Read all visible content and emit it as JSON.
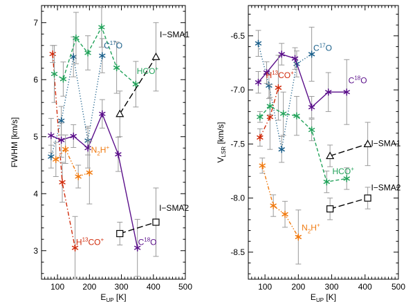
{
  "chart_data": [
    {
      "type": "line",
      "ylabel": "FWHM [km/s]",
      "xlabel": "E",
      "xlabel_sub": "UP",
      "xlabel_unit": " [K]",
      "xlim": [
        50,
        500
      ],
      "ylim": [
        2.5,
        7.3
      ],
      "xticks": [
        100,
        200,
        300,
        400,
        500
      ],
      "xtick_labels": [
        "100",
        "200",
        "300",
        "400",
        "500"
      ],
      "yticks": [
        3,
        4,
        5,
        6,
        7
      ],
      "ytick_labels": [
        "3",
        "4",
        "5",
        "6",
        "7"
      ],
      "series": [
        {
          "id": "h13co",
          "name": "H13CO+",
          "color": "#d02a0a",
          "dash": "dashdot",
          "marker": "star",
          "x": [
            85,
            115,
            155
          ],
          "y": [
            6.45,
            4.2,
            3.05
          ],
          "err": [
            0.15,
            0.35,
            0.55
          ]
        },
        {
          "id": "c17o",
          "name": "C17O",
          "color": "#1a5f8a",
          "dash": "dotted",
          "marker": "star",
          "x": [
            80,
            112,
            150,
            195,
            240
          ],
          "y": [
            4.65,
            5.28,
            6.4,
            4.93,
            6.42
          ],
          "err": [
            0.2,
            0.25,
            0.35,
            0.25,
            0.3
          ]
        },
        {
          "id": "hco",
          "name": "HCO+",
          "color": "#22a25a",
          "dash": "dashed",
          "marker": "star",
          "x": [
            90,
            118,
            158,
            195,
            238,
            285,
            345
          ],
          "y": [
            6.1,
            6.01,
            6.73,
            6.47,
            6.92,
            6.21,
            5.92
          ],
          "err": [
            0.5,
            0.3,
            0.45,
            0.3,
            0.35,
            0.45,
            0.4
          ]
        },
        {
          "id": "c18o",
          "name": "C18O",
          "color": "#5a0f8a",
          "dash": "solid",
          "marker": "star",
          "x": [
            80,
            112,
            150,
            195,
            240,
            290,
            350
          ],
          "y": [
            5.02,
            4.94,
            5.01,
            4.8,
            5.4,
            4.69,
            3.05
          ],
          "err": [
            0.3,
            0.3,
            0.2,
            0.35,
            0.25,
            0.3,
            0.5
          ]
        },
        {
          "id": "n2h",
          "name": "N2H+",
          "color": "#f07a10",
          "dash": "dashdotdot",
          "marker": "star",
          "x": [
            95,
            125,
            165,
            200
          ],
          "y": [
            4.6,
            4.78,
            4.3,
            4.37
          ],
          "err": [
            0.3,
            0.25,
            0.2,
            0.55
          ]
        },
        {
          "id": "isma1",
          "name": "I-SMA1",
          "color": "#000000",
          "dash": "longdash",
          "marker": "triangle",
          "x": [
            295,
            408
          ],
          "y": [
            5.4,
            6.4
          ],
          "err": [
            0.4,
            0.6
          ]
        },
        {
          "id": "isma2",
          "name": "I-SMA2",
          "color": "#000000",
          "dash": "longdash",
          "marker": "square",
          "x": [
            295,
            408
          ],
          "y": [
            3.3,
            3.5
          ],
          "err": [
            0.2,
            0.6
          ]
        }
      ],
      "annotations": [
        {
          "series": "isma1",
          "text": "I−SMA1",
          "x": 420,
          "y": 6.74
        },
        {
          "series": "hco",
          "main": "HCO",
          "sup": "+",
          "x": 348,
          "y": 6.1
        },
        {
          "series": "c17o",
          "main": "C",
          "presup": "17",
          "tail": "O",
          "x": 245,
          "y": 6.55
        },
        {
          "series": "n2h",
          "main": "N",
          "sub": "2",
          "tail": "H",
          "sup": "+",
          "x": 205,
          "y": 4.72
        },
        {
          "series": "isma2",
          "text": "I−SMA2",
          "x": 418,
          "y": 3.7
        },
        {
          "series": "h13co",
          "main": "H",
          "presup": "13",
          "tail": "CO",
          "sup": "+",
          "x": 158,
          "y": 3.1
        },
        {
          "series": "c18o",
          "main": "C",
          "presup": "18",
          "tail": "O",
          "x": 352,
          "y": 3.1
        }
      ]
    },
    {
      "type": "line",
      "ylabel": "V",
      "ylabel_sub": "LSR",
      "ylabel_unit": " [km/s]",
      "xlabel": "E",
      "xlabel_sub": "UP",
      "xlabel_unit": " [K]",
      "xlim": [
        50,
        500
      ],
      "ylim": [
        -8.75,
        -6.22
      ],
      "xticks": [
        100,
        200,
        300,
        400,
        500
      ],
      "xtick_labels": [
        "100",
        "200",
        "300",
        "400",
        "500"
      ],
      "yticks": [
        -6.5,
        -7.0,
        -7.5,
        -8.0,
        -8.5
      ],
      "ytick_labels": [
        "-6.5",
        "-7.0",
        "-7.5",
        "-8.0",
        "-8.5"
      ],
      "series": [
        {
          "id": "c17o",
          "name": "C17O",
          "color": "#1a5f8a",
          "dash": "dotted",
          "marker": "star",
          "x": [
            80,
            112,
            150,
            195,
            240
          ],
          "y": [
            -6.57,
            -6.96,
            -7.55,
            -6.76,
            -6.67
          ],
          "err": [
            0.12,
            0.12,
            0.12,
            0.12,
            0.25
          ]
        },
        {
          "id": "c18o",
          "name": "C18O",
          "color": "#5a0f8a",
          "dash": "solid",
          "marker": "star",
          "x": [
            80,
            105,
            150,
            190,
            240,
            290,
            345
          ],
          "y": [
            -6.93,
            -6.84,
            -6.67,
            -6.71,
            -7.16,
            -7.02,
            -7.02
          ],
          "err": [
            0.1,
            0.1,
            0.1,
            0.1,
            0.1,
            0.18,
            0.3
          ]
        },
        {
          "id": "h13co",
          "name": "H13CO+",
          "color": "#d02a0a",
          "dash": "dashdot",
          "marker": "star",
          "x": [
            85,
            115,
            140
          ],
          "y": [
            -7.44,
            -7.25,
            -6.98
          ],
          "err": [
            0.08,
            0.3,
            0.3
          ]
        },
        {
          "id": "hco",
          "name": "HCO+",
          "color": "#22a25a",
          "dash": "dashed",
          "marker": "star",
          "x": [
            85,
            115,
            155,
            195,
            240,
            285,
            345
          ],
          "y": [
            -7.25,
            -7.15,
            -7.22,
            -7.24,
            -7.37,
            -7.85,
            -7.82
          ],
          "err": [
            0.05,
            0.08,
            0.2,
            0.18,
            0.1,
            0.1,
            0.1
          ]
        },
        {
          "id": "isma1",
          "name": "I-SMA1",
          "color": "#000000",
          "dash": "longdash",
          "marker": "triangle",
          "x": [
            295,
            408
          ],
          "y": [
            -7.61,
            -7.5
          ],
          "err": [
            0.1,
            0.2
          ]
        },
        {
          "id": "n2h",
          "name": "N2H+",
          "color": "#f07a10",
          "dash": "dashdotdot",
          "marker": "star",
          "x": [
            92,
            125,
            160,
            200
          ],
          "y": [
            -7.7,
            -8.07,
            -8.15,
            -8.36
          ],
          "err": [
            0.07,
            0.1,
            0.12,
            0.25
          ]
        },
        {
          "id": "isma2",
          "name": "I-SMA2",
          "color": "#000000",
          "dash": "longdash",
          "marker": "square",
          "x": [
            295,
            408
          ],
          "y": [
            -8.1,
            -8.0
          ],
          "err": [
            0.1,
            0.1
          ]
        }
      ],
      "annotations": [
        {
          "series": "c17o",
          "main": "C",
          "presup": "17",
          "tail": "O",
          "x": 245,
          "y": -6.64
        },
        {
          "series": "h13co",
          "main": "H",
          "presup": "13",
          "tail": "CO",
          "sup": "+",
          "x": 103,
          "y": -6.89
        },
        {
          "series": "c18o",
          "main": "C",
          "presup": "18",
          "tail": "O",
          "x": 350,
          "y": -6.94
        },
        {
          "series": "isma1",
          "text": "I−SMA1",
          "x": 418,
          "y": -7.52
        },
        {
          "series": "hco",
          "main": "HCO",
          "sup": "+",
          "x": 302,
          "y": -7.78
        },
        {
          "series": "isma2",
          "text": "I−SMA2",
          "x": 418,
          "y": -7.93
        },
        {
          "series": "n2h",
          "main": "N",
          "sub": "2",
          "tail": "H",
          "sup": "+",
          "x": 210,
          "y": -8.3
        }
      ]
    }
  ]
}
